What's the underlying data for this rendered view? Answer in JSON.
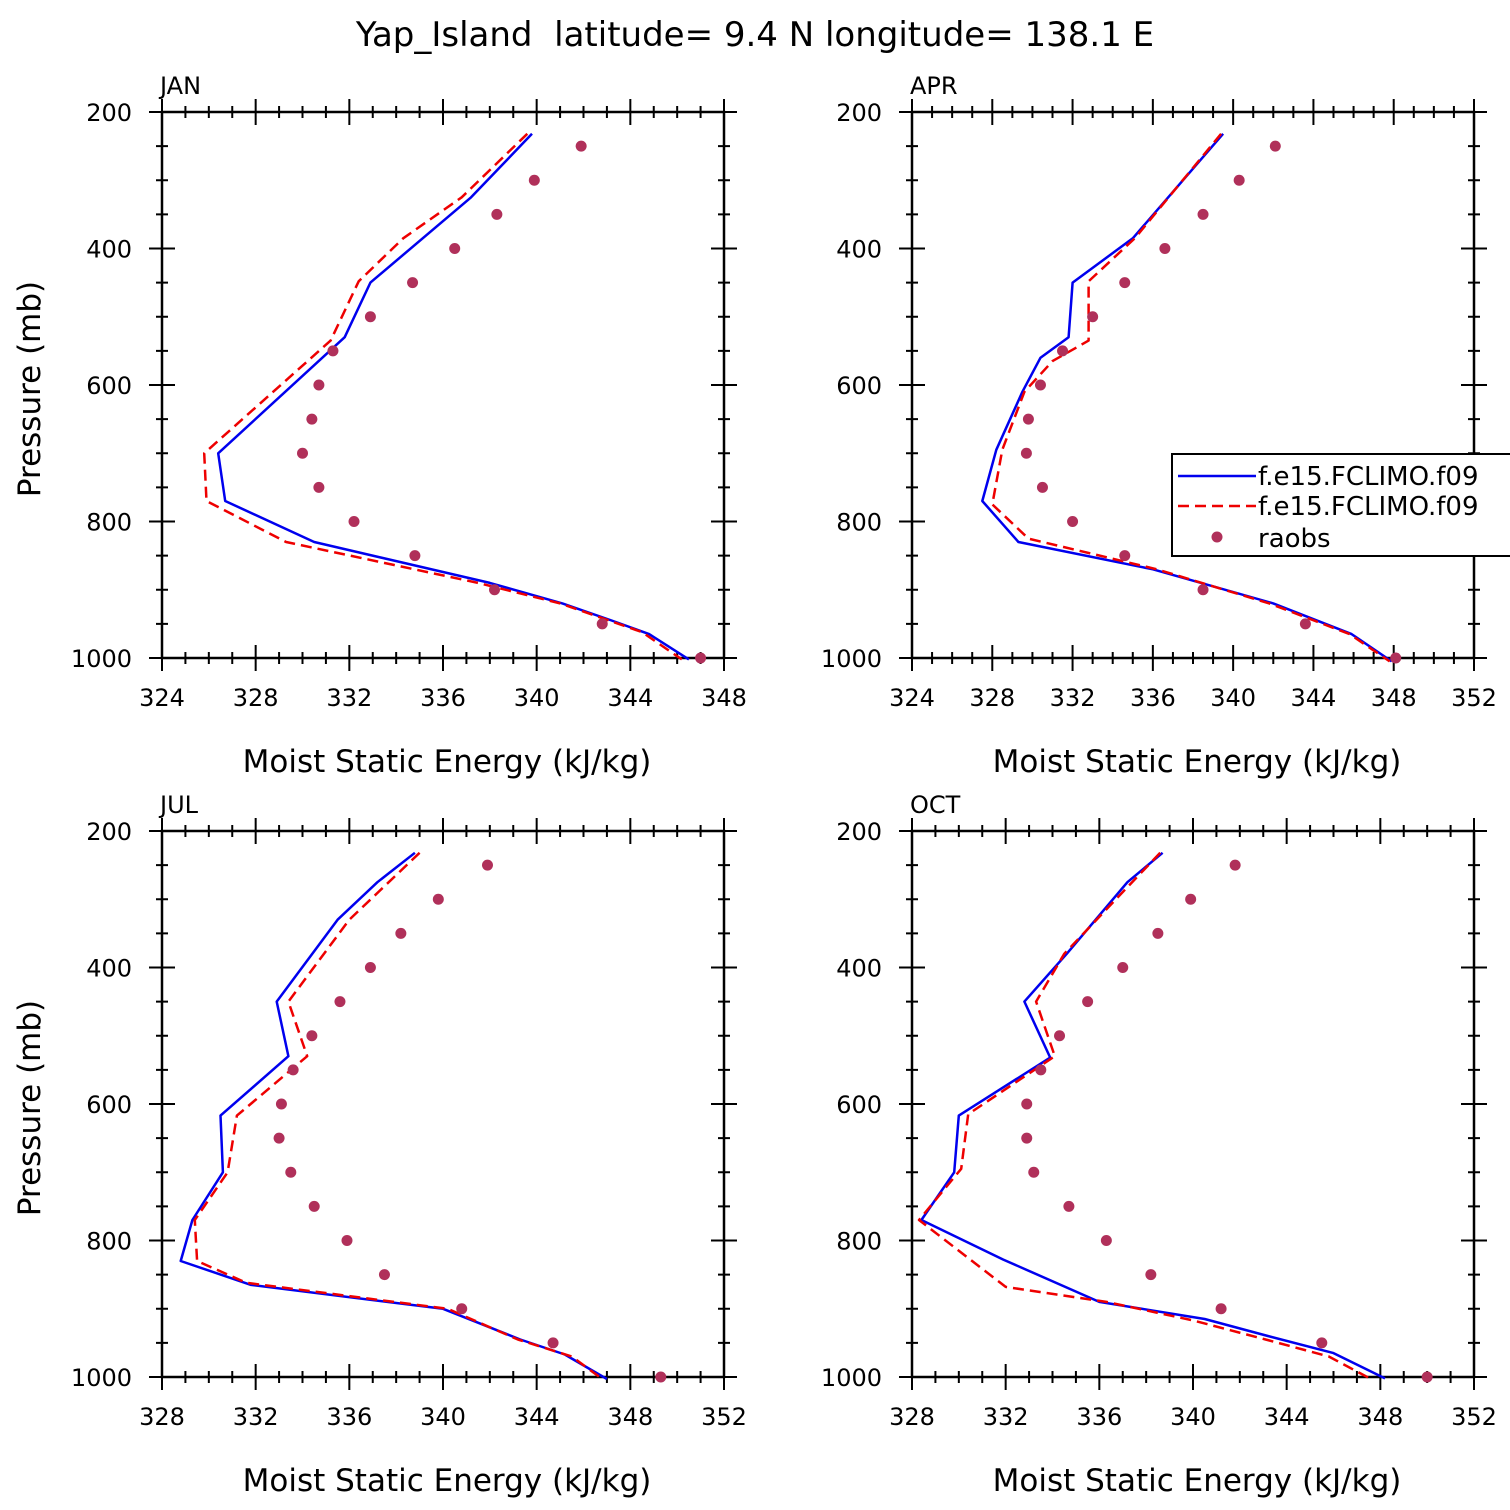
{
  "chart_data": {
    "title": "Yap_Island  latitude= 9.4 N longitude= 138.1 E",
    "type": "line",
    "pressure_ticks": [
      200,
      400,
      600,
      800,
      1000
    ],
    "legend": {
      "panel": 1,
      "entries": [
        "f.e15.FCLIMO.f09",
        "f.e15.FCLIMO.f09",
        "raobs"
      ]
    },
    "colors": {
      "model1": "#0000ee",
      "model2": "#ee0000",
      "raobs": "#b0305a"
    },
    "panels": [
      {
        "label": "JAN",
        "xlabel": "Moist Static Energy (kJ/kg)",
        "ylabel": "Pressure (mb)",
        "xlim": [
          324,
          348
        ],
        "xticks": [
          324,
          328,
          332,
          336,
          340,
          344,
          348
        ],
        "ylim": [
          200,
          1000
        ],
        "series": [
          {
            "name": "f.e15.FCLIMO.f09",
            "style": "solid",
            "x": [
              339.8,
              337.2,
              332.9,
              331.8,
              326.4,
              326.7,
              330.5,
              338.0,
              341.1,
              343.2,
              344.8,
              346.5
            ],
            "y": [
              232,
              325,
              450,
              530,
              700,
              770,
              830,
              890,
              920,
              945,
              965,
              1002
            ]
          },
          {
            "name": "f.e15.FCLIMO.f09",
            "style": "dashed",
            "x": [
              339.6,
              336.8,
              334.3,
              332.4,
              331.2,
              325.8,
              325.9,
              329.3,
              337.5,
              341.0,
              344.5,
              346.2
            ],
            "y": [
              232,
              325,
              385,
              448,
              535,
              700,
              770,
              830,
              890,
              920,
              962,
              1002
            ]
          },
          {
            "name": "raobs",
            "style": "dots",
            "x": [
              341.9,
              339.9,
              338.3,
              336.5,
              334.7,
              332.9,
              331.3,
              330.7,
              330.4,
              330.0,
              330.7,
              332.2,
              334.8,
              338.2,
              342.8,
              347.0
            ],
            "y": [
              250,
              300,
              350,
              400,
              450,
              500,
              550,
              600,
              650,
              700,
              750,
              800,
              850,
              900,
              950,
              1000
            ]
          }
        ]
      },
      {
        "label": "APR",
        "xlabel": "Moist Static Energy (kJ/kg)",
        "ylabel": "",
        "xlim": [
          324,
          352
        ],
        "xticks": [
          324,
          328,
          332,
          336,
          340,
          344,
          348,
          352
        ],
        "ylim": [
          200,
          1000
        ],
        "series": [
          {
            "name": "f.e15.FCLIMO.f09",
            "style": "solid",
            "x": [
              339.5,
              335.0,
              332.0,
              331.8,
              330.4,
              329.5,
              328.2,
              327.5,
              329.3,
              336.0,
              342.0,
              345.9,
              347.9
            ],
            "y": [
              232,
              385,
              450,
              530,
              560,
              610,
              695,
              770,
              830,
              870,
              920,
              965,
              1005
            ]
          },
          {
            "name": "f.e15.FCLIMO.f09",
            "style": "dashed",
            "x": [
              339.4,
              335.1,
              332.8,
              332.8,
              331.0,
              329.6,
              328.5,
              328.0,
              329.8,
              336.2,
              341.8,
              345.8,
              347.8
            ],
            "y": [
              232,
              385,
              448,
              535,
              565,
              610,
              695,
              775,
              825,
              870,
              920,
              965,
              1005
            ]
          },
          {
            "name": "raobs",
            "style": "dots",
            "x": [
              342.1,
              340.3,
              338.5,
              336.6,
              334.6,
              333.0,
              331.5,
              330.4,
              329.8,
              329.7,
              330.5,
              332.0,
              334.6,
              338.5,
              343.6,
              348.1
            ],
            "y": [
              250,
              300,
              350,
              400,
              450,
              500,
              550,
              600,
              650,
              700,
              750,
              800,
              850,
              900,
              950,
              1000
            ]
          }
        ]
      },
      {
        "label": "JUL",
        "xlabel": "Moist Static Energy (kJ/kg)",
        "ylabel": "Pressure (mb)",
        "xlim": [
          328,
          352
        ],
        "xticks": [
          328,
          332,
          336,
          340,
          344,
          348,
          352
        ],
        "ylim": [
          200,
          1000
        ],
        "series": [
          {
            "name": "f.e15.FCLIMO.f09",
            "style": "solid",
            "x": [
              338.8,
              337.2,
              335.5,
              332.9,
              333.4,
              330.5,
              330.6,
              329.3,
              328.8,
              331.8,
              340.0,
              343.3,
              345.2,
              347.0
            ],
            "y": [
              232,
              275,
              330,
              450,
              530,
              617,
              700,
              770,
              830,
              865,
              900,
              945,
              967,
              1003
            ]
          },
          {
            "name": "f.e15.FCLIMO.f09",
            "style": "dashed",
            "x": [
              339.0,
              336.0,
              333.4,
              334.2,
              331.2,
              330.8,
              329.4,
              329.5,
              331.6,
              340.2,
              343.2,
              345.5,
              346.8
            ],
            "y": [
              232,
              330,
              450,
              530,
              617,
              700,
              770,
              830,
              862,
              900,
              945,
              970,
              1003
            ]
          },
          {
            "name": "raobs",
            "style": "dots",
            "x": [
              341.9,
              339.8,
              338.2,
              336.9,
              335.6,
              334.4,
              333.6,
              333.1,
              333.0,
              333.5,
              334.5,
              335.9,
              337.5,
              340.8,
              344.7,
              349.3
            ],
            "y": [
              250,
              300,
              350,
              400,
              450,
              500,
              550,
              600,
              650,
              700,
              750,
              800,
              850,
              900,
              950,
              1000
            ]
          }
        ]
      },
      {
        "label": "OCT",
        "xlabel": "Moist Static Energy (kJ/kg)",
        "ylabel": "",
        "xlim": [
          328,
          352
        ],
        "xticks": [
          328,
          332,
          336,
          340,
          344,
          348,
          352
        ],
        "ylim": [
          200,
          1000
        ],
        "series": [
          {
            "name": "f.e15.FCLIMO.f09",
            "style": "solid",
            "x": [
              338.7,
              337.2,
              334.6,
              332.8,
              333.9,
              330.0,
              329.8,
              328.4,
              331.9,
              336.0,
              340.5,
              343.2,
              346.0,
              348.2
            ],
            "y": [
              232,
              275,
              380,
              450,
              532,
              617,
              700,
              770,
              828,
              890,
              915,
              940,
              965,
              1002
            ]
          },
          {
            "name": "f.e15.FCLIMO.f09",
            "style": "dashed",
            "x": [
              338.6,
              337.4,
              334.5,
              333.3,
              334.1,
              330.4,
              330.1,
              328.3,
              332.0,
              336.3,
              340.0,
              343.1,
              345.8,
              347.6
            ],
            "y": [
              232,
              275,
              380,
              450,
              530,
              615,
              695,
              770,
              868,
              890,
              917,
              945,
              970,
              1003
            ]
          },
          {
            "name": "raobs",
            "style": "dots",
            "x": [
              341.8,
              339.9,
              338.5,
              337.0,
              335.5,
              334.3,
              333.5,
              332.9,
              332.9,
              333.2,
              334.7,
              336.3,
              338.2,
              341.2,
              345.5,
              350.0
            ],
            "y": [
              250,
              300,
              350,
              400,
              450,
              500,
              550,
              600,
              650,
              700,
              750,
              800,
              850,
              900,
              950,
              1000
            ]
          }
        ]
      }
    ]
  }
}
